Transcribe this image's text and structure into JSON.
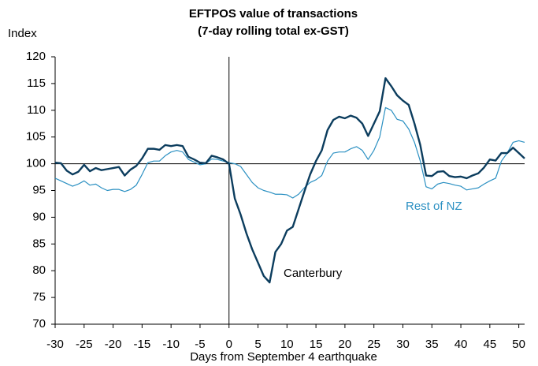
{
  "chart_data": {
    "type": "line",
    "title": "EFTPOS value of transactions",
    "subtitle": "(7-day rolling total ex-GST)",
    "y_label": "Index",
    "x_label": "Days from September 4 earthquake",
    "x": [
      -30,
      -29,
      -28,
      -27,
      -26,
      -25,
      -24,
      -23,
      -22,
      -21,
      -20,
      -19,
      -18,
      -17,
      -16,
      -15,
      -14,
      -13,
      -12,
      -11,
      -10,
      -9,
      -8,
      -7,
      -6,
      -5,
      -4,
      -3,
      -2,
      -1,
      0,
      1,
      2,
      3,
      4,
      5,
      6,
      7,
      8,
      9,
      10,
      11,
      12,
      13,
      14,
      15,
      16,
      17,
      18,
      19,
      20,
      21,
      22,
      23,
      24,
      25,
      26,
      27,
      28,
      29,
      30,
      31,
      32,
      33,
      34,
      35,
      36,
      37,
      38,
      39,
      40,
      41,
      42,
      43,
      44,
      45,
      46,
      47,
      48,
      49,
      50,
      51
    ],
    "series": [
      {
        "name": "Rest of NZ",
        "color": "#2b90c2",
        "width": 1.2,
        "values": [
          97.3,
          96.8,
          96.3,
          95.8,
          96.2,
          96.8,
          96.0,
          96.2,
          95.5,
          95.0,
          95.2,
          95.2,
          94.8,
          95.2,
          96.0,
          98.0,
          100.2,
          100.5,
          100.5,
          101.5,
          102.2,
          102.5,
          102.2,
          100.8,
          100.3,
          99.8,
          100.0,
          100.9,
          100.8,
          100.5,
          100.2,
          100.0,
          99.5,
          98.0,
          96.5,
          95.5,
          95.0,
          94.7,
          94.3,
          94.3,
          94.2,
          93.6,
          94.3,
          95.5,
          96.5,
          97.0,
          97.8,
          100.5,
          102.0,
          102.2,
          102.2,
          102.8,
          103.2,
          102.5,
          100.8,
          102.5,
          105.0,
          110.5,
          110.0,
          108.3,
          108.0,
          106.5,
          104.0,
          100.5,
          95.7,
          95.3,
          96.2,
          96.5,
          96.3,
          96.0,
          95.8,
          95.1,
          95.3,
          95.5,
          96.2,
          96.8,
          97.3,
          100.5,
          102.0,
          104.0,
          104.3,
          104.0
        ]
      },
      {
        "name": "Canterbury",
        "color": "#0c3d5e",
        "width": 2.4,
        "values": [
          100.2,
          100.1,
          98.7,
          98.0,
          98.5,
          99.8,
          98.6,
          99.2,
          98.8,
          99.0,
          99.2,
          99.4,
          97.8,
          98.9,
          99.6,
          101.0,
          102.8,
          102.8,
          102.6,
          103.5,
          103.3,
          103.5,
          103.3,
          101.3,
          100.8,
          100.2,
          100.1,
          101.5,
          101.2,
          100.8,
          100.0,
          93.5,
          90.5,
          87.0,
          84.0,
          81.5,
          79.0,
          77.8,
          83.5,
          85.0,
          87.5,
          88.2,
          91.5,
          94.8,
          98.0,
          100.5,
          102.5,
          106.3,
          108.2,
          108.8,
          108.5,
          109.0,
          108.6,
          107.5,
          105.2,
          107.5,
          109.8,
          116.0,
          114.5,
          112.8,
          111.8,
          111.0,
          107.5,
          103.5,
          97.8,
          97.7,
          98.5,
          98.6,
          97.7,
          97.5,
          97.6,
          97.3,
          97.8,
          98.2,
          99.3,
          100.8,
          100.6,
          102.0,
          102.0,
          103.0,
          102.0,
          101.0
        ]
      }
    ],
    "xlim": [
      -30,
      51
    ],
    "ylim": [
      70,
      120
    ],
    "xticks": [
      -30,
      -25,
      -20,
      -15,
      -10,
      -5,
      0,
      5,
      10,
      15,
      20,
      25,
      30,
      35,
      40,
      45,
      50
    ],
    "yticks": [
      70,
      75,
      80,
      85,
      90,
      95,
      100,
      105,
      110,
      115,
      120
    ],
    "hline": 100,
    "vline": 0
  }
}
